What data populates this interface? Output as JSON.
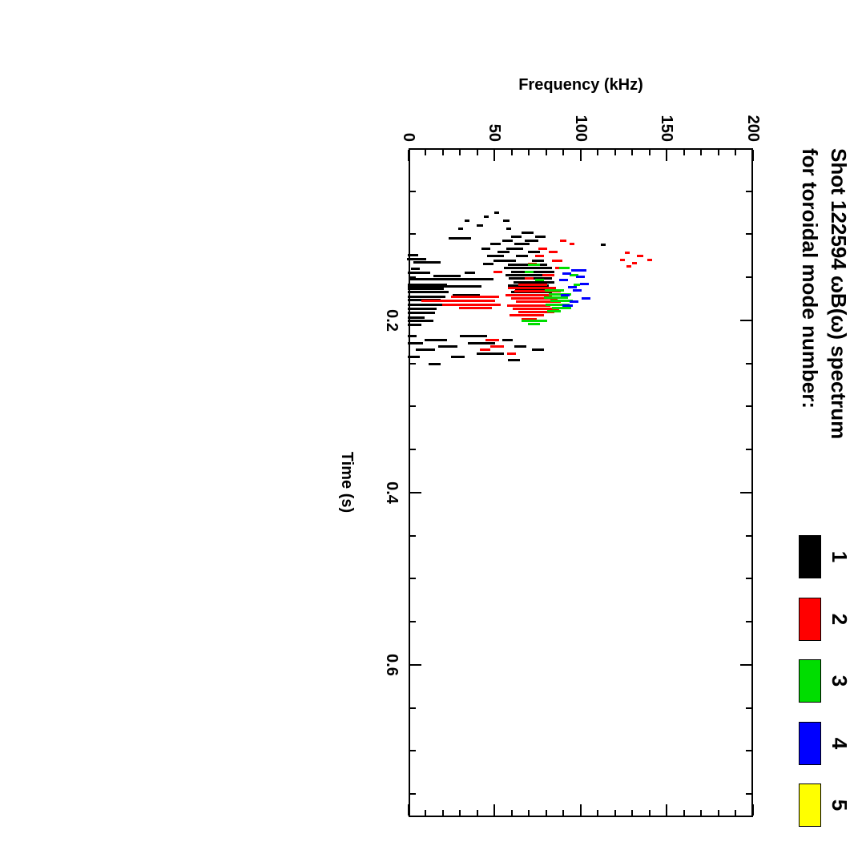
{
  "figure": {
    "background": "#ffffff",
    "orientation_note": "landscape plot rotated 90 degrees clockwise on portrait page"
  },
  "chart_data": {
    "type": "scatter",
    "title": "Shot 122594 ωB(ω) spectrum",
    "subtitle": "for toroidal mode number:",
    "xlabel": "Time (s)",
    "ylabel": "Frequency (kHz)",
    "xlim": [
      0,
      0.777
    ],
    "ylim": [
      0,
      200
    ],
    "x_ticks": [
      {
        "value": 0.2,
        "label": "0.2"
      },
      {
        "value": 0.4,
        "label": "0.4"
      },
      {
        "value": 0.6,
        "label": "0.6"
      }
    ],
    "y_ticks": [
      {
        "value": 0,
        "label": "0"
      },
      {
        "value": 50,
        "label": "50"
      },
      {
        "value": 100,
        "label": "100"
      },
      {
        "value": 150,
        "label": "150"
      },
      {
        "value": 200,
        "label": "200"
      }
    ],
    "x_minor_step": 0.05,
    "y_minor_step": 10,
    "grid": false,
    "legend_position": "title-row-right",
    "legend": [
      {
        "label": "1",
        "color": "#000000"
      },
      {
        "label": "2",
        "color": "#ff0000"
      },
      {
        "label": "3",
        "color": "#00dd00"
      },
      {
        "label": "4",
        "color": "#0000ff"
      },
      {
        "label": "5",
        "color": "#ffff00"
      }
    ],
    "series": [
      {
        "name": "toroidal mode n=1",
        "color": "#000000",
        "segments": [
          [
            0.074,
            50,
            52
          ],
          [
            0.079,
            44,
            46
          ],
          [
            0.084,
            33,
            35
          ],
          [
            0.084,
            55,
            58
          ],
          [
            0.089,
            40,
            43
          ],
          [
            0.093,
            29,
            31
          ],
          [
            0.093,
            57,
            59
          ],
          [
            0.098,
            66,
            72
          ],
          [
            0.102,
            60,
            65
          ],
          [
            0.102,
            74,
            79
          ],
          [
            0.104,
            24,
            36
          ],
          [
            0.107,
            55,
            60
          ],
          [
            0.107,
            68,
            75
          ],
          [
            0.111,
            48,
            53
          ],
          [
            0.111,
            62,
            70
          ],
          [
            0.112,
            112,
            114
          ],
          [
            0.116,
            43,
            47
          ],
          [
            0.116,
            57,
            66
          ],
          [
            0.12,
            52,
            58
          ],
          [
            0.12,
            70,
            76
          ],
          [
            0.124,
            0,
            5
          ],
          [
            0.125,
            46,
            55
          ],
          [
            0.125,
            63,
            69
          ],
          [
            0.128,
            0,
            10
          ],
          [
            0.13,
            50,
            62
          ],
          [
            0.13,
            72,
            78
          ],
          [
            0.132,
            3,
            18
          ],
          [
            0.134,
            44,
            49
          ],
          [
            0.135,
            58,
            80
          ],
          [
            0.139,
            56,
            83
          ],
          [
            0.143,
            60,
            84
          ],
          [
            0.147,
            57,
            82
          ],
          [
            0.151,
            59,
            83
          ],
          [
            0.155,
            61,
            84
          ],
          [
            0.159,
            58,
            81
          ],
          [
            0.163,
            62,
            84
          ],
          [
            0.167,
            60,
            83
          ],
          [
            0.14,
            2,
            6
          ],
          [
            0.144,
            0,
            12
          ],
          [
            0.144,
            33,
            38
          ],
          [
            0.148,
            15,
            30
          ],
          [
            0.152,
            1,
            49
          ],
          [
            0.158,
            0,
            22
          ],
          [
            0.16,
            0,
            42
          ],
          [
            0.163,
            0,
            20
          ],
          [
            0.167,
            0,
            23
          ],
          [
            0.17,
            26,
            41
          ],
          [
            0.172,
            0,
            21
          ],
          [
            0.176,
            0,
            18
          ],
          [
            0.181,
            0,
            22
          ],
          [
            0.186,
            0,
            16
          ],
          [
            0.191,
            0,
            15
          ],
          [
            0.196,
            0,
            9
          ],
          [
            0.2,
            0,
            14
          ],
          [
            0.205,
            0,
            7
          ],
          [
            0.218,
            0,
            4
          ],
          [
            0.218,
            30,
            45
          ],
          [
            0.222,
            10,
            22
          ],
          [
            0.222,
            55,
            60
          ],
          [
            0.226,
            0,
            8
          ],
          [
            0.226,
            35,
            50
          ],
          [
            0.23,
            18,
            28
          ],
          [
            0.23,
            62,
            68
          ],
          [
            0.234,
            5,
            15
          ],
          [
            0.234,
            72,
            78
          ],
          [
            0.238,
            40,
            55
          ],
          [
            0.242,
            0,
            6
          ],
          [
            0.242,
            25,
            32
          ],
          [
            0.246,
            58,
            64
          ],
          [
            0.25,
            12,
            18
          ]
        ]
      },
      {
        "name": "toroidal mode n=2",
        "color": "#ff0000",
        "segments": [
          [
            0.107,
            88,
            91
          ],
          [
            0.111,
            94,
            96
          ],
          [
            0.116,
            76,
            80
          ],
          [
            0.12,
            82,
            86
          ],
          [
            0.121,
            126,
            128
          ],
          [
            0.125,
            74,
            78
          ],
          [
            0.125,
            133,
            136
          ],
          [
            0.129,
            123,
            125
          ],
          [
            0.129,
            139,
            141
          ],
          [
            0.13,
            84,
            89
          ],
          [
            0.133,
            130,
            132
          ],
          [
            0.134,
            70,
            74
          ],
          [
            0.137,
            127,
            129
          ],
          [
            0.139,
            86,
            90
          ],
          [
            0.143,
            50,
            54
          ],
          [
            0.147,
            78,
            84
          ],
          [
            0.151,
            68,
            72
          ],
          [
            0.158,
            64,
            80
          ],
          [
            0.162,
            58,
            85
          ],
          [
            0.166,
            62,
            88
          ],
          [
            0.17,
            57,
            83
          ],
          [
            0.172,
            25,
            52
          ],
          [
            0.174,
            60,
            86
          ],
          [
            0.177,
            8,
            50
          ],
          [
            0.178,
            63,
            88
          ],
          [
            0.181,
            20,
            53
          ],
          [
            0.182,
            58,
            82
          ],
          [
            0.185,
            30,
            48
          ],
          [
            0.186,
            61,
            87
          ],
          [
            0.19,
            64,
            84
          ],
          [
            0.194,
            59,
            78
          ],
          [
            0.198,
            66,
            74
          ],
          [
            0.222,
            45,
            52
          ],
          [
            0.23,
            48,
            55
          ],
          [
            0.234,
            42,
            47
          ],
          [
            0.238,
            58,
            62
          ]
        ]
      },
      {
        "name": "toroidal mode n=3",
        "color": "#00dd00",
        "segments": [
          [
            0.135,
            70,
            76
          ],
          [
            0.139,
            88,
            93
          ],
          [
            0.143,
            68,
            72
          ],
          [
            0.147,
            94,
            98
          ],
          [
            0.153,
            74,
            78
          ],
          [
            0.158,
            96,
            99
          ],
          [
            0.165,
            80,
            90
          ],
          [
            0.169,
            82,
            94
          ],
          [
            0.173,
            79,
            92
          ],
          [
            0.177,
            83,
            95
          ],
          [
            0.181,
            80,
            93
          ],
          [
            0.185,
            84,
            94
          ],
          [
            0.189,
            81,
            88
          ],
          [
            0.2,
            66,
            80
          ],
          [
            0.204,
            70,
            76
          ]
        ]
      },
      {
        "name": "toroidal mode n=4",
        "color": "#0000ff",
        "segments": [
          [
            0.141,
            95,
            103
          ],
          [
            0.145,
            90,
            94
          ],
          [
            0.149,
            98,
            102
          ],
          [
            0.153,
            88,
            92
          ],
          [
            0.157,
            100,
            104
          ],
          [
            0.161,
            93,
            97
          ],
          [
            0.165,
            96,
            100
          ],
          [
            0.17,
            89,
            93
          ],
          [
            0.174,
            101,
            105
          ],
          [
            0.178,
            94,
            98
          ],
          [
            0.182,
            90,
            95
          ]
        ]
      },
      {
        "name": "toroidal mode n=5",
        "color": "#ffff00",
        "segments": []
      }
    ]
  }
}
